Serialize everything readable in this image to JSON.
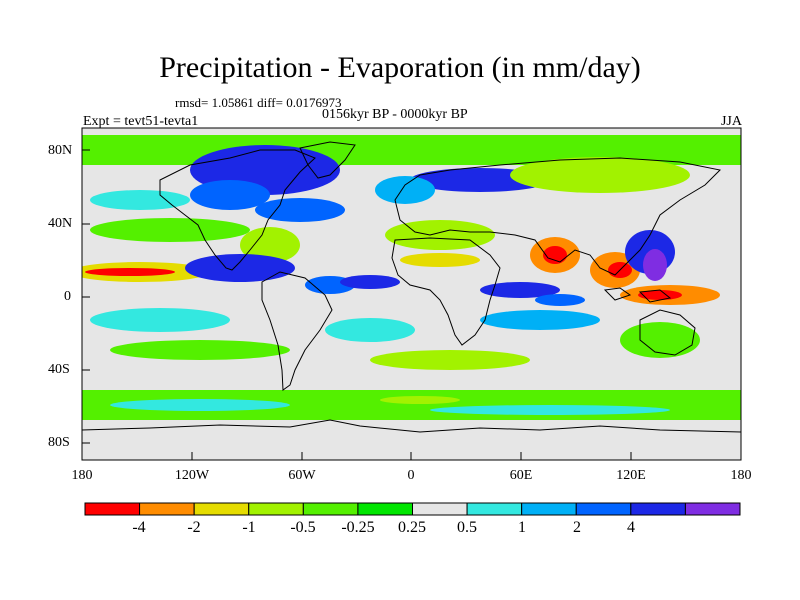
{
  "header": {
    "title": "Precipitation - Evaporation (in mm/day)",
    "stats": "rmsd= 1.05861 diff= 0.0176973",
    "period": "0156kyr BP - 0000kyr BP",
    "experiment": "Expt = tevt51-tevta1",
    "season": "JJA"
  },
  "axes": {
    "lat_ticks": [
      "80N",
      "40N",
      "0",
      "40S",
      "80S"
    ],
    "lon_ticks": [
      "180",
      "120W",
      "60W",
      "0",
      "60E",
      "120E",
      "180"
    ]
  },
  "colorbar": {
    "colors": [
      "#ff0000",
      "#ff8c00",
      "#e5dc00",
      "#a2f200",
      "#54f000",
      "#00e600",
      "#e6e6e6",
      "#33e8e0",
      "#00b0f6",
      "#0064ff",
      "#1c28e6",
      "#7f2de2"
    ],
    "labels": [
      "-4",
      "-2",
      "-1",
      "-0.5",
      "-0.25",
      "0.25",
      "0.5",
      "1",
      "2",
      "4"
    ]
  },
  "map_colors": {
    "ocean_background": "#e6e6e6",
    "coastline": "#000000"
  }
}
